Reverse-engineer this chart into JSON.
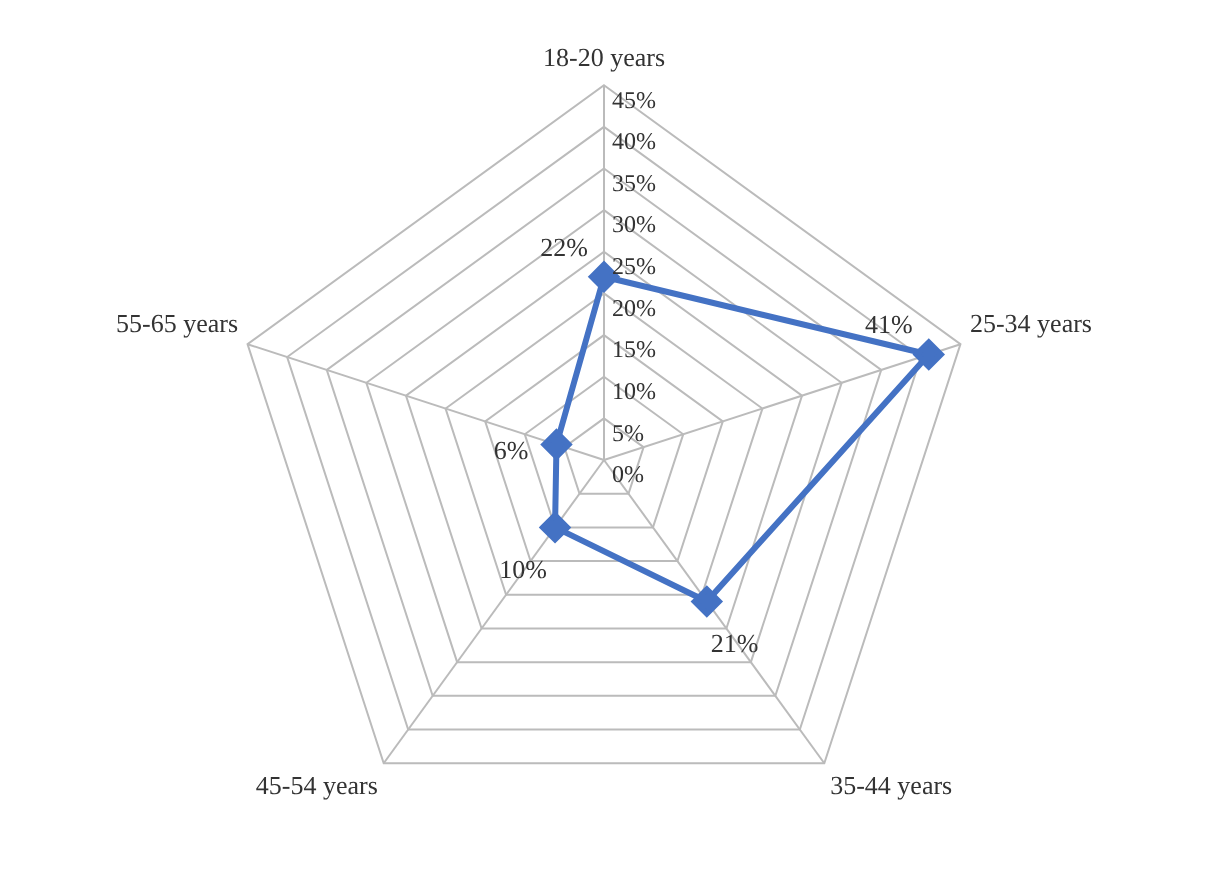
{
  "chart_data": {
    "type": "radar",
    "categories": [
      "18-20 years",
      "25-34 years",
      "35-44 years",
      "45-54 years",
      "55-65 years"
    ],
    "series": [
      {
        "color": "#4472c4",
        "values": [
          22,
          41,
          21,
          10,
          6
        ],
        "value_labels": [
          "22%",
          "41%",
          "21%",
          "10%",
          "6%"
        ]
      }
    ],
    "ylim": [
      0,
      45
    ],
    "yticks": [
      {
        "value": 0,
        "label": "0%"
      },
      {
        "value": 5,
        "label": "5%"
      },
      {
        "value": 10,
        "label": "10%"
      },
      {
        "value": 15,
        "label": "15%"
      },
      {
        "value": 20,
        "label": "20%"
      },
      {
        "value": 25,
        "label": "25%"
      },
      {
        "value": 30,
        "label": "30%"
      },
      {
        "value": 35,
        "label": "35%"
      },
      {
        "value": 40,
        "label": "40%"
      },
      {
        "value": 45,
        "label": "45%"
      }
    ],
    "grid": true,
    "marker": "diamond",
    "legend": false
  }
}
